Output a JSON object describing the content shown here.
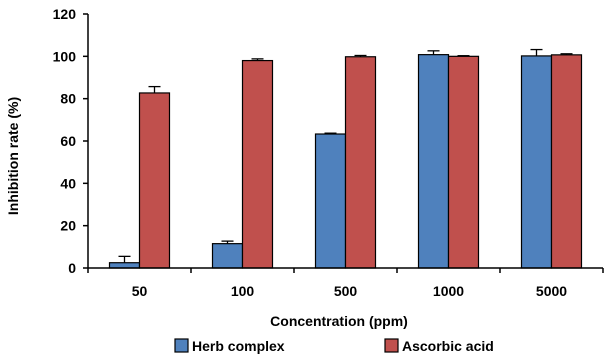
{
  "chart_data": {
    "type": "bar",
    "categories": [
      "50",
      "100",
      "500",
      "1000",
      "5000"
    ],
    "series": [
      {
        "name": "Herb complex",
        "color": "#4F81BD",
        "values": [
          2.5,
          11.5,
          63.3,
          100.8,
          100.2
        ],
        "errors": [
          3.0,
          1.2,
          0.4,
          1.8,
          3.0
        ]
      },
      {
        "name": "Ascorbic acid",
        "color": "#C0504D",
        "values": [
          82.7,
          98.0,
          99.8,
          100.0,
          100.7
        ],
        "errors": [
          3.0,
          0.8,
          0.6,
          0.3,
          0.5
        ]
      }
    ],
    "xlabel": "Concentration (ppm)",
    "ylabel": "Inhibition rate (%)",
    "ylim": [
      0,
      120
    ],
    "yticks": [
      0,
      20,
      40,
      60,
      80,
      100,
      120
    ],
    "grid": false,
    "legend_position": "bottom"
  }
}
